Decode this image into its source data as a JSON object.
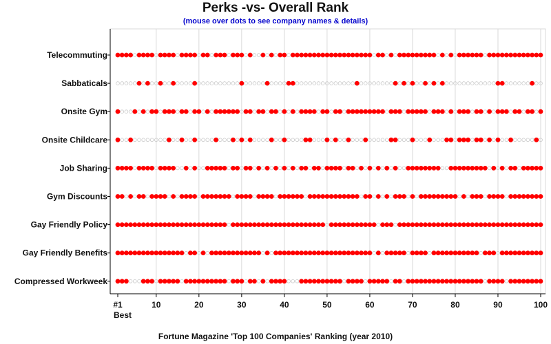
{
  "chart_data": {
    "type": "scatter",
    "title": "Perks -vs- Overall Rank",
    "subtitle": "(mouse over dots to see company names & details)",
    "xlabel": "Fortune Magazine 'Top 100 Companies' Ranking (year 2010)",
    "first_tick_label": "#1",
    "first_tick_sublabel": "Best",
    "xlim": [
      1,
      100
    ],
    "xticks": [
      10,
      20,
      30,
      40,
      50,
      60,
      70,
      80,
      90,
      100
    ],
    "grid": true,
    "colors": {
      "has_perk": "#ff0000",
      "no_perk": "#c8c8c8",
      "grid": "#d9d9d9",
      "axis": "#000000"
    },
    "categories": [
      "Telecommuting",
      "Sabbaticals",
      "Onsite Gym",
      "Onsite Childcare",
      "Job Sharing",
      "Gym Discounts",
      "Gay Friendly Policy",
      "Gay Friendly Benefits",
      "Compressed Workweek"
    ],
    "series": [
      {
        "category": "Telecommuting",
        "has_perk_ranks": [
          1,
          2,
          3,
          4,
          6,
          7,
          8,
          9,
          11,
          12,
          13,
          14,
          16,
          17,
          18,
          19,
          21,
          22,
          24,
          25,
          26,
          28,
          29,
          30,
          32,
          35,
          37,
          39,
          40,
          42,
          43,
          44,
          45,
          46,
          47,
          48,
          49,
          50,
          51,
          52,
          53,
          54,
          55,
          56,
          57,
          58,
          59,
          60,
          62,
          63,
          65,
          67,
          68,
          69,
          70,
          71,
          72,
          73,
          74,
          75,
          77,
          79,
          81,
          82,
          83,
          84,
          85,
          86,
          88,
          89,
          90,
          91,
          92,
          93,
          94,
          95,
          96,
          97,
          98,
          99,
          100
        ]
      },
      {
        "category": "Sabbaticals",
        "has_perk_ranks": [
          6,
          8,
          11,
          14,
          19,
          30,
          36,
          41,
          42,
          57,
          66,
          68,
          70,
          73,
          75,
          77,
          90,
          91,
          98
        ]
      },
      {
        "category": "Onsite Gym",
        "has_perk_ranks": [
          1,
          5,
          7,
          9,
          10,
          12,
          13,
          14,
          16,
          17,
          19,
          20,
          22,
          24,
          25,
          26,
          27,
          28,
          29,
          31,
          32,
          34,
          35,
          37,
          38,
          40,
          42,
          44,
          45,
          46,
          47,
          49,
          50,
          52,
          53,
          55,
          56,
          57,
          58,
          59,
          60,
          61,
          62,
          63,
          65,
          66,
          67,
          69,
          70,
          71,
          72,
          73,
          75,
          76,
          77,
          79,
          81,
          82,
          83,
          85,
          86,
          88,
          90,
          91,
          92,
          94,
          95,
          97,
          98,
          100
        ]
      },
      {
        "category": "Onsite Childcare",
        "has_perk_ranks": [
          1,
          4,
          13,
          16,
          19,
          24,
          28,
          30,
          32,
          37,
          40,
          45,
          46,
          50,
          52,
          55,
          59,
          65,
          66,
          70,
          74,
          78,
          79,
          81,
          82,
          83,
          85,
          86,
          88,
          90,
          93,
          99
        ]
      },
      {
        "category": "Job Sharing",
        "has_perk_ranks": [
          1,
          2,
          3,
          4,
          6,
          7,
          8,
          9,
          11,
          12,
          13,
          14,
          17,
          19,
          22,
          23,
          24,
          25,
          26,
          28,
          29,
          31,
          32,
          34,
          36,
          38,
          40,
          42,
          44,
          45,
          47,
          48,
          50,
          51,
          52,
          53,
          55,
          56,
          58,
          60,
          62,
          64,
          66,
          69,
          70,
          71,
          72,
          73,
          74,
          75,
          76,
          79,
          80,
          81,
          82,
          83,
          84,
          85,
          86,
          87,
          89,
          91,
          93,
          94,
          96,
          97,
          98,
          99,
          100
        ]
      },
      {
        "category": "Gym Discounts",
        "has_perk_ranks": [
          1,
          2,
          4,
          6,
          7,
          9,
          10,
          11,
          12,
          14,
          16,
          17,
          18,
          19,
          21,
          22,
          23,
          24,
          25,
          26,
          27,
          29,
          30,
          31,
          32,
          34,
          35,
          36,
          37,
          39,
          40,
          41,
          42,
          43,
          44,
          46,
          47,
          48,
          49,
          50,
          51,
          52,
          53,
          54,
          55,
          56,
          57,
          59,
          60,
          62,
          64,
          66,
          67,
          68,
          70,
          72,
          73,
          74,
          75,
          76,
          77,
          78,
          79,
          80,
          82,
          84,
          85,
          86,
          88,
          89,
          90,
          91,
          93,
          94,
          95,
          96,
          97,
          98,
          99,
          100
        ]
      },
      {
        "category": "Gay Friendly Policy",
        "has_perk_ranks": [
          1,
          2,
          3,
          4,
          5,
          6,
          7,
          8,
          9,
          10,
          11,
          12,
          13,
          14,
          15,
          16,
          17,
          18,
          19,
          20,
          21,
          22,
          23,
          24,
          25,
          26,
          28,
          29,
          30,
          31,
          32,
          33,
          34,
          35,
          36,
          37,
          38,
          39,
          40,
          41,
          42,
          43,
          44,
          45,
          46,
          47,
          48,
          49,
          51,
          52,
          53,
          54,
          55,
          56,
          57,
          58,
          59,
          60,
          61,
          63,
          64,
          65,
          67,
          68,
          69,
          70,
          71,
          72,
          73,
          74,
          75,
          76,
          77,
          78,
          79,
          80,
          81,
          82,
          83,
          84,
          85,
          86,
          87,
          88,
          89,
          90,
          91,
          92,
          93,
          94,
          95,
          96,
          97,
          98,
          99,
          100
        ]
      },
      {
        "category": "Gay Friendly Benefits",
        "has_perk_ranks": [
          1,
          2,
          3,
          4,
          5,
          6,
          7,
          8,
          9,
          10,
          11,
          12,
          13,
          14,
          15,
          16,
          18,
          19,
          21,
          23,
          24,
          25,
          26,
          27,
          28,
          29,
          30,
          31,
          32,
          33,
          34,
          36,
          38,
          39,
          40,
          41,
          42,
          43,
          44,
          45,
          46,
          47,
          48,
          49,
          50,
          51,
          52,
          53,
          54,
          55,
          56,
          57,
          58,
          59,
          60,
          62,
          64,
          65,
          66,
          67,
          68,
          70,
          71,
          72,
          73,
          75,
          76,
          77,
          78,
          79,
          80,
          81,
          82,
          83,
          84,
          85,
          87,
          88,
          89,
          91,
          92,
          93,
          94,
          95,
          96,
          97,
          98,
          99,
          100
        ]
      },
      {
        "category": "Compressed Workweek",
        "has_perk_ranks": [
          1,
          2,
          3,
          7,
          8,
          9,
          11,
          12,
          13,
          14,
          15,
          17,
          18,
          19,
          20,
          21,
          22,
          23,
          24,
          25,
          26,
          28,
          29,
          30,
          32,
          33,
          35,
          37,
          38,
          39,
          40,
          44,
          45,
          46,
          47,
          48,
          49,
          50,
          51,
          52,
          53,
          55,
          56,
          57,
          58,
          60,
          61,
          62,
          63,
          64,
          66,
          67,
          69,
          70,
          71,
          72,
          73,
          74,
          75,
          76,
          77,
          78,
          79,
          80,
          81,
          82,
          83,
          84,
          85,
          86,
          88,
          89,
          90,
          91,
          93,
          94,
          95,
          96,
          97,
          98,
          99,
          100
        ]
      }
    ]
  }
}
